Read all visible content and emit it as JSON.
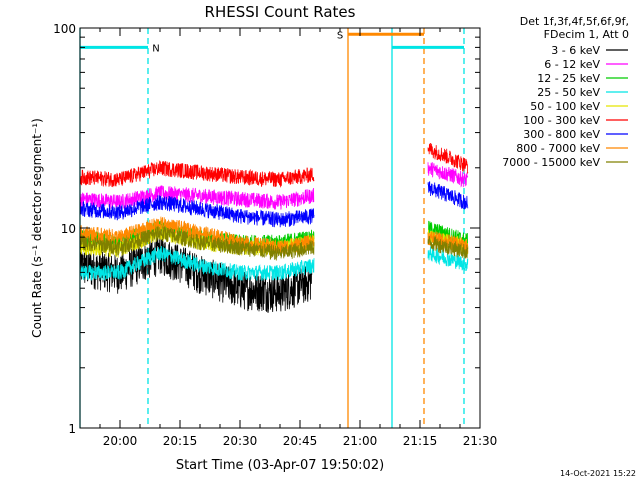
{
  "chart_data": {
    "type": "line",
    "title": "RHESSI Count Rates",
    "xlabel": "Start Time (03-Apr-07 19:50:02)",
    "ylabel": "Count Rate (s⁻¹ detector segment⁻¹)",
    "y_scale": "log",
    "ylim": [
      1,
      100
    ],
    "xlim_minutes": [
      "19:50",
      "21:30"
    ],
    "x_ticks": [
      "20:00",
      "20:15",
      "20:30",
      "20:45",
      "21:00",
      "21:15",
      "21:30"
    ],
    "y_ticks": [
      "1",
      "10",
      "100"
    ],
    "timestamp": "14-Oct-2021 15:22",
    "legend_header": [
      "Det 1f,3f,4f,5f,6f,9f,",
      "FDecim 1, Att 0"
    ],
    "series": [
      {
        "name": "3 - 6 keV",
        "color": "#000000",
        "x": [
          "19:50",
          "20:00",
          "20:10",
          "20:20",
          "20:30",
          "20:40",
          "20:48",
          "21:17",
          "21:28"
        ],
        "values": [
          6.5,
          6.0,
          7.5,
          6.0,
          5.0,
          4.8,
          5.5,
          null,
          null
        ]
      },
      {
        "name": "6 - 12 keV",
        "color": "#ff00ff",
        "x": [
          "19:50",
          "20:00",
          "20:10",
          "20:20",
          "20:30",
          "20:40",
          "20:48",
          "21:17",
          "21:28"
        ],
        "values": [
          14,
          13.5,
          15,
          14.5,
          14,
          13.5,
          14.5,
          20,
          17
        ]
      },
      {
        "name": "12 - 25 keV",
        "color": "#00cc00",
        "x": [
          "19:50",
          "20:00",
          "20:10",
          "20:20",
          "20:30",
          "20:40",
          "20:48",
          "21:17",
          "21:28"
        ],
        "values": [
          9,
          8.5,
          10,
          9,
          8.5,
          8.5,
          9,
          10,
          8.5
        ]
      },
      {
        "name": "25 - 50 keV",
        "color": "#00e5e5",
        "x": [
          "19:50",
          "20:00",
          "20:10",
          "20:20",
          "20:30",
          "20:40",
          "20:48",
          "21:17",
          "21:28"
        ],
        "values": [
          6,
          6,
          7.5,
          6.5,
          6,
          6,
          6.5,
          7.5,
          6.5
        ]
      },
      {
        "name": "50 - 100 keV",
        "color": "#e5e500",
        "x": [
          "19:50",
          "20:00",
          "20:10",
          "20:20",
          "20:30",
          "20:40",
          "20:48",
          "21:17",
          "21:28"
        ],
        "values": [
          8,
          7.8,
          9.5,
          8.5,
          8,
          8,
          8.5,
          9,
          8
        ]
      },
      {
        "name": "100 - 300 keV",
        "color": "#ff0000",
        "x": [
          "19:50",
          "20:00",
          "20:10",
          "20:20",
          "20:30",
          "20:40",
          "20:48",
          "21:17",
          "21:28"
        ],
        "values": [
          18,
          17.5,
          20,
          19,
          18,
          17.5,
          18.5,
          25,
          20
        ]
      },
      {
        "name": "300 - 800 keV",
        "color": "#0000ff",
        "x": [
          "19:50",
          "20:00",
          "20:10",
          "20:20",
          "20:30",
          "20:40",
          "20:48",
          "21:17",
          "21:28"
        ],
        "values": [
          12.5,
          12,
          13.5,
          12.5,
          11.5,
          11,
          11.5,
          16,
          13
        ]
      },
      {
        "name": "800 - 7000 keV",
        "color": "#ff8800",
        "x": [
          "19:50",
          "20:00",
          "20:10",
          "20:20",
          "20:30",
          "20:40",
          "20:48",
          "21:17",
          "21:28"
        ],
        "values": [
          9.5,
          9,
          10.5,
          9.5,
          8.5,
          8,
          8.5,
          9,
          8
        ]
      },
      {
        "name": "7000 - 15000 keV",
        "color": "#808000",
        "x": [
          "19:50",
          "20:00",
          "20:10",
          "20:20",
          "20:30",
          "20:40",
          "20:48",
          "21:17",
          "21:28"
        ],
        "values": [
          8.5,
          8,
          9.5,
          8.5,
          8,
          7.5,
          8,
          8.5,
          7.5
        ]
      }
    ],
    "annotations": [
      {
        "label": "N",
        "color": "#00e5e5",
        "x_start": "19:50",
        "x_end": "20:07",
        "level": 80
      },
      {
        "label": "S",
        "color": "#ff8800",
        "x_start": "20:57",
        "x_end": "21:16",
        "level": 93
      },
      {
        "label": "",
        "color": "#00e5e5",
        "x_start": "21:08",
        "x_end": "21:26",
        "level": 80
      }
    ],
    "vertical_markers": [
      {
        "x": "19:50",
        "color": "#00e5e5",
        "style": "solid"
      },
      {
        "x": "20:07",
        "color": "#00e5e5",
        "style": "dashed"
      },
      {
        "x": "20:57",
        "color": "#ff8800",
        "style": "solid"
      },
      {
        "x": "21:08",
        "color": "#00e5e5",
        "style": "solid"
      },
      {
        "x": "21:16",
        "color": "#ff8800",
        "style": "dashed"
      },
      {
        "x": "21:26",
        "color": "#00e5e5",
        "style": "dashed"
      }
    ],
    "grid": false,
    "legend": "right"
  }
}
